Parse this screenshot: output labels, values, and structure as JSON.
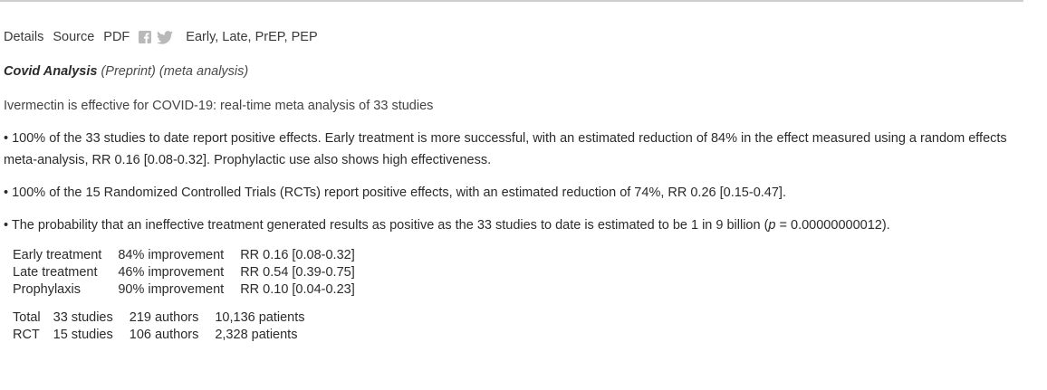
{
  "links": {
    "details": "Details",
    "source": "Source",
    "pdf": "PDF",
    "tags": "Early, Late, PrEP, PEP"
  },
  "social_icons": [
    "facebook-icon",
    "twitter-icon"
  ],
  "source": {
    "journal": "Covid Analysis",
    "type": "(Preprint) (meta analysis)"
  },
  "title": "Ivermectin is effective for COVID-19: real-time meta analysis of 33 studies",
  "bullets": [
    "• 100% of the 33 studies to date report positive effects. Early treatment is more successful, with an estimated reduction of 84% in the effect measured using a random effects meta-analysis, RR 0.16 [0.08-0.32]. Prophylactic use also shows high effectiveness.",
    "• 100% of the 15 Randomized Controlled Trials (RCTs) report positive effects, with an estimated reduction of 74%, RR 0.26 [0.15-0.47]."
  ],
  "bullet3": {
    "prefix": "• The probability that an ineffective treatment generated results as positive as the 33 studies to date is estimated to be 1 in 9 billion (",
    "p": "p",
    "suffix": " = 0.00000000012)."
  },
  "treatment_rows": [
    {
      "label": "Early treatment",
      "improvement": "84% improvement",
      "rr": "RR 0.16 [0.08-0.32]"
    },
    {
      "label": "Late treatment",
      "improvement": "46% improvement",
      "rr": "RR 0.54 [0.39-0.75]"
    },
    {
      "label": "Prophylaxis",
      "improvement": "90% improvement",
      "rr": "RR 0.10 [0.04-0.23]"
    }
  ],
  "total_rows": [
    {
      "label": "Total",
      "studies": "33 studies",
      "authors": "219 authors",
      "patients": "10,136 patients"
    },
    {
      "label": "RCT",
      "studies": "15 studies",
      "authors": "106 authors",
      "patients": "2,328 patients"
    }
  ],
  "colors": {
    "text": "#2b2b2b",
    "icon": "#b9b9b9",
    "rule": "#cfcfcf"
  }
}
